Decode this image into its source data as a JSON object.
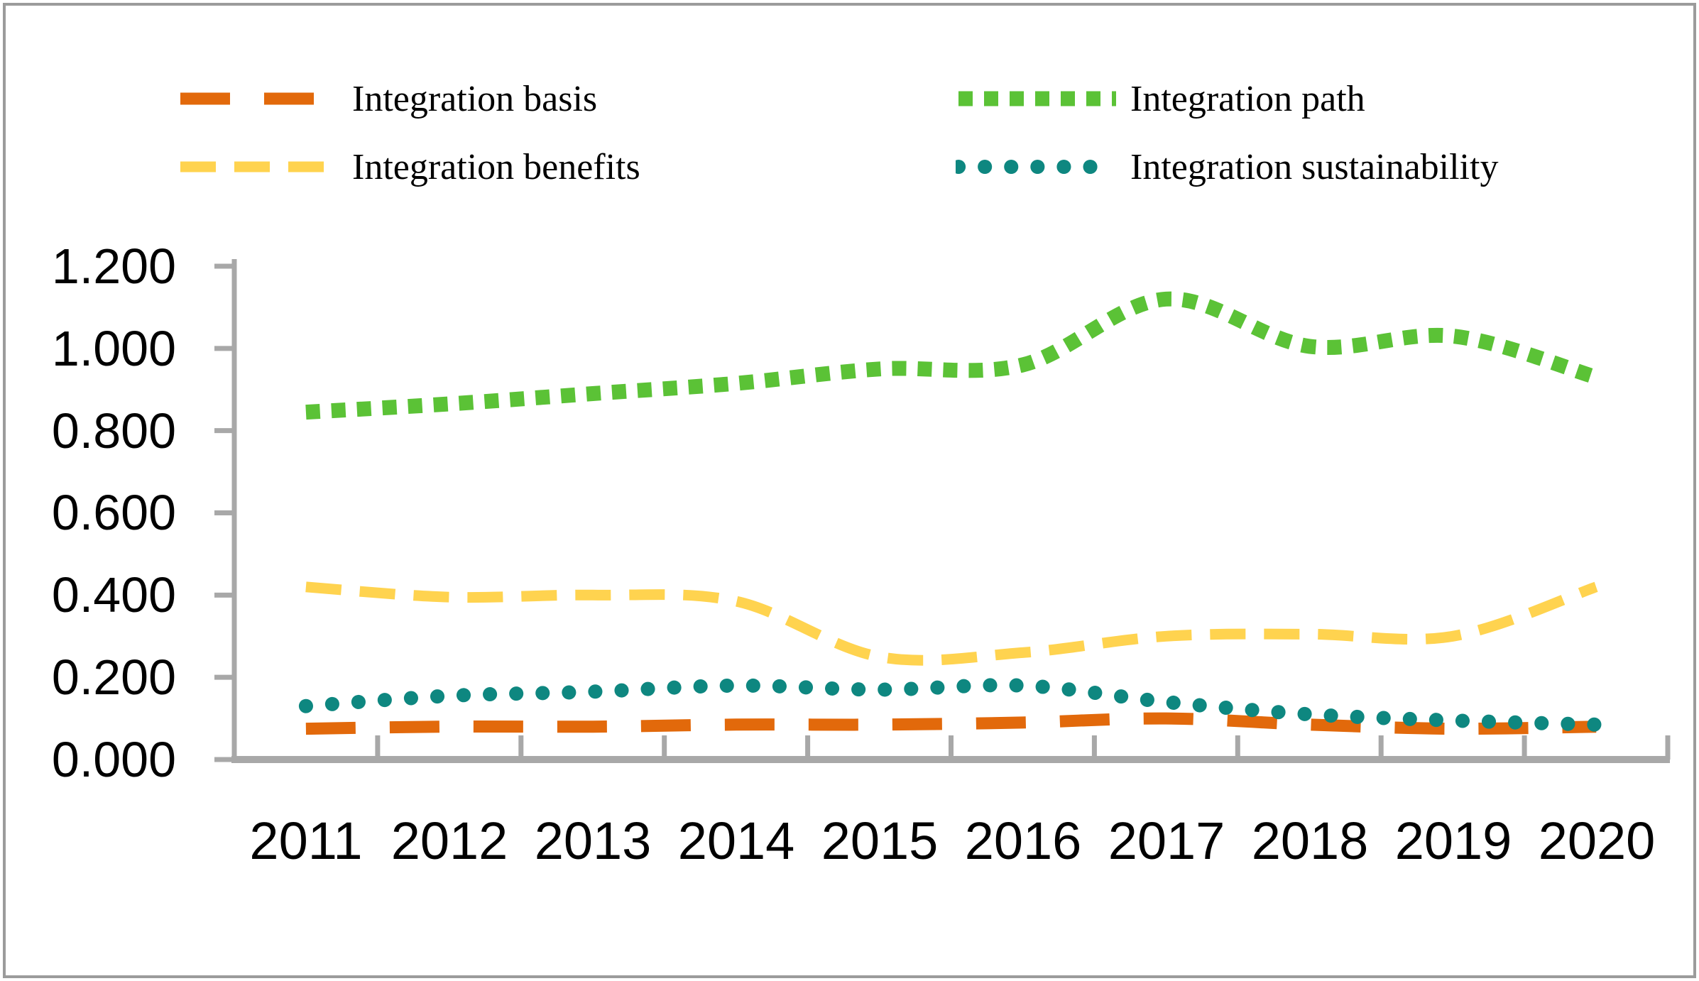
{
  "chart_data": {
    "type": "line",
    "smoothed": true,
    "title": "",
    "xlabel": "",
    "ylabel": "",
    "x": [
      "2011",
      "2012",
      "2013",
      "2014",
      "2015",
      "2016",
      "2017",
      "2018",
      "2019",
      "2020"
    ],
    "series": [
      {
        "name": "Integration basis",
        "color": "#E2690B",
        "dash_style": "long-dash",
        "values": [
          0.075,
          0.08,
          0.08,
          0.085,
          0.085,
          0.09,
          0.1,
          0.085,
          0.075,
          0.08
        ]
      },
      {
        "name": "Integration path",
        "color": "#5BC236",
        "dash_style": "square-dot",
        "values": [
          0.845,
          0.865,
          0.89,
          0.915,
          0.95,
          0.96,
          1.12,
          1.005,
          1.03,
          0.93
        ]
      },
      {
        "name": "Integration benefits",
        "color": "#FFD34F",
        "dash_style": "dash",
        "values": [
          0.42,
          0.395,
          0.4,
          0.385,
          0.25,
          0.26,
          0.3,
          0.305,
          0.3,
          0.42
        ]
      },
      {
        "name": "Integration sustainability",
        "color": "#0E8780",
        "dash_style": "round-dot",
        "values": [
          0.13,
          0.155,
          0.165,
          0.18,
          0.17,
          0.18,
          0.14,
          0.11,
          0.095,
          0.085
        ]
      }
    ],
    "ylim": [
      0.0,
      1.2
    ],
    "y_ticks": [
      0.0,
      0.2,
      0.4,
      0.6,
      0.8,
      1.0,
      1.2
    ],
    "y_tick_labels": [
      "0.000",
      "0.200",
      "0.400",
      "0.600",
      "0.800",
      "1.000",
      "1.200"
    ],
    "grid": false,
    "legend_position": "top",
    "axis_color": "#A8A8A8"
  }
}
